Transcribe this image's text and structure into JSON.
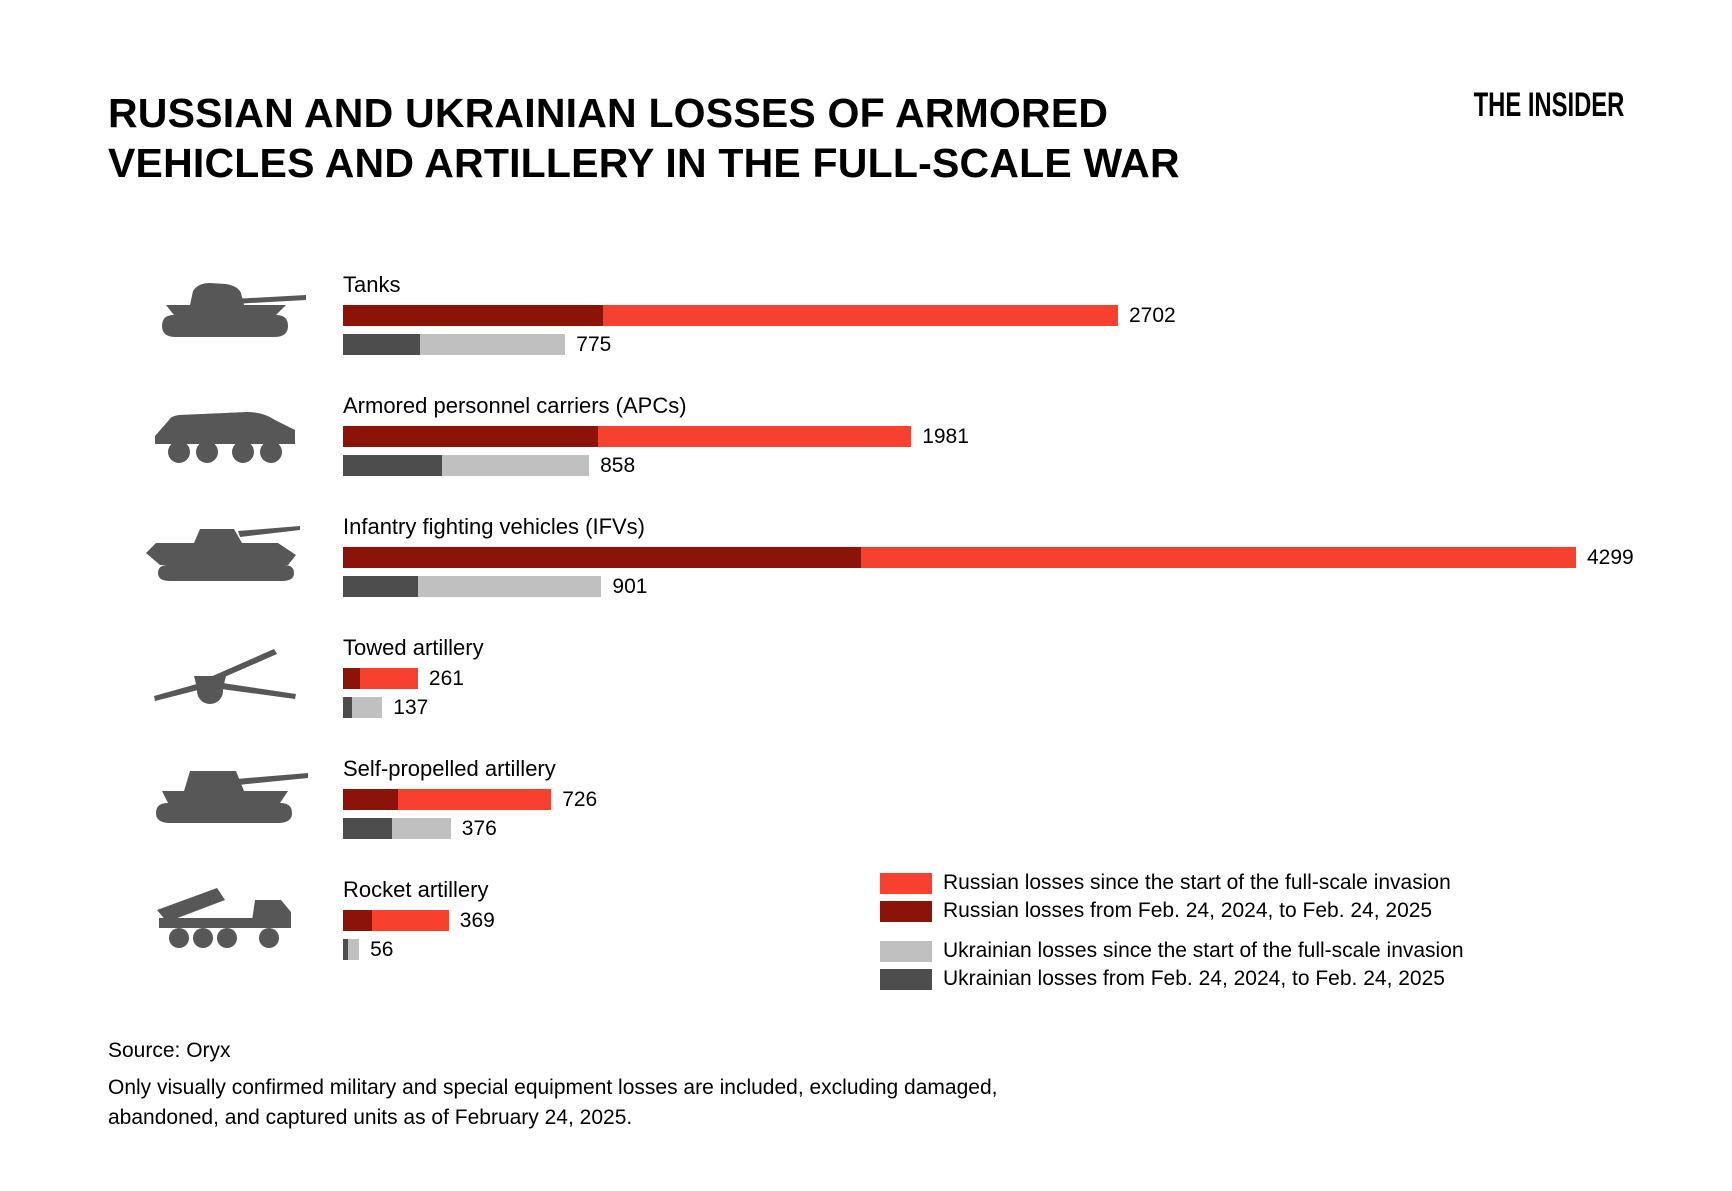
{
  "page": {
    "logo": "THE INSIDER",
    "title_line1": "RUSSIAN AND UKRAINIAN LOSSES OF ARMORED",
    "title_line2": "VEHICLES AND ARTILLERY IN THE FULL-SCALE WAR",
    "source": "Source: Oryx",
    "note_line1": "Only visually confirmed military and special equipment losses are included, excluding damaged,",
    "note_line2": "abandoned, and captured units as of February 24, 2025."
  },
  "colors": {
    "russian_total": "#F8402E",
    "russian_recent": "#8C1308",
    "ukrainian_total": "#C1C0C0",
    "ukrainian_recent": "#4D4D4D",
    "icon": "#575757",
    "text": "#000000",
    "background": "#FFFFFF"
  },
  "legend": {
    "items": [
      {
        "label": "Russian losses since the start of the full-scale invasion",
        "color": "#F8402E",
        "group": 1
      },
      {
        "label": "Russian losses from Feb. 24, 2024, to Feb. 24, 2025",
        "color": "#8C1308",
        "group": 1
      },
      {
        "label": "Ukrainian losses since the start of the full-scale invasion",
        "color": "#C1C0C0",
        "group": 2
      },
      {
        "label": "Ukrainian losses from Feb. 24, 2024, to Feb. 24, 2025",
        "color": "#4D4D4D",
        "group": 2
      }
    ]
  },
  "chart_data": {
    "type": "bar",
    "orientation": "horizontal",
    "title": "RUSSIAN AND UKRAINIAN LOSSES OF ARMORED VEHICLES AND ARTILLERY IN THE FULL-SCALE WAR",
    "axis_max": 4299,
    "grid": false,
    "legend_position": "bottom-right",
    "value_labels": "end-of-bar (totals only; recent-period segments are unlabeled overlays)",
    "categories": [
      "Tanks",
      "Armored personnel carriers (APCs)",
      "Infantry fighting vehicles (IFVs)",
      "Towed artillery",
      "Self-propelled artillery",
      "Rocket artillery"
    ],
    "rows": [
      {
        "category": "Tanks",
        "icon": "tank-icon",
        "ru_total": 2702,
        "ru_recent_est": 905,
        "ua_total": 775,
        "ua_recent_est": 270
      },
      {
        "category": "Armored personnel carriers (APCs)",
        "icon": "apc-icon",
        "ru_total": 1981,
        "ru_recent_est": 890,
        "ua_total": 858,
        "ua_recent_est": 345
      },
      {
        "category": "Infantry fighting vehicles (IFVs)",
        "icon": "ifv-icon",
        "ru_total": 4299,
        "ru_recent_est": 1805,
        "ua_total": 901,
        "ua_recent_est": 260
      },
      {
        "category": "Towed artillery",
        "icon": "towed-artillery-icon",
        "ru_total": 261,
        "ru_recent_est": 58,
        "ua_total": 137,
        "ua_recent_est": 30
      },
      {
        "category": "Self-propelled artillery",
        "icon": "self-propelled-artillery-icon",
        "ru_total": 726,
        "ru_recent_est": 192,
        "ua_total": 376,
        "ua_recent_est": 170
      },
      {
        "category": "Rocket artillery",
        "icon": "rocket-artillery-icon",
        "ru_total": 369,
        "ru_recent_est": 100,
        "ua_total": 56,
        "ua_recent_est": 17
      }
    ],
    "series": [
      {
        "name": "Russian losses since the start of the full-scale invasion",
        "values": [
          2702,
          1981,
          4299,
          261,
          726,
          369
        ]
      },
      {
        "name": "Russian losses from Feb. 24, 2024, to Feb. 24, 2025 (estimated from bar proportions)",
        "values": [
          905,
          890,
          1805,
          58,
          192,
          100
        ]
      },
      {
        "name": "Ukrainian losses since the start of the full-scale invasion",
        "values": [
          775,
          858,
          901,
          137,
          376,
          56
        ]
      },
      {
        "name": "Ukrainian losses from Feb. 24, 2024, to Feb. 24, 2025 (estimated from bar proportions)",
        "values": [
          270,
          345,
          260,
          30,
          170,
          17
        ]
      }
    ]
  }
}
